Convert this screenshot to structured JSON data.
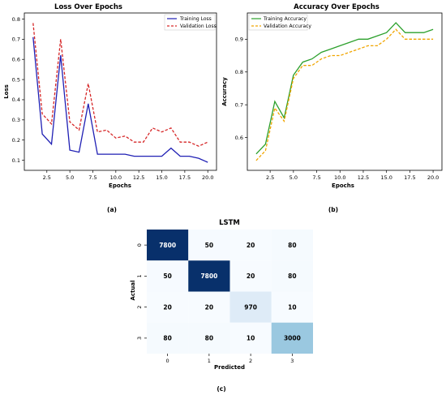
{
  "chart_data": [
    {
      "type": "line",
      "title": "Loss Over Epochs",
      "xlabel": "Epochs",
      "ylabel": "Loss",
      "xlim": [
        0.05,
        20.95
      ],
      "ylim": [
        0.05,
        0.83
      ],
      "xticks": [
        "2.5",
        "5.0",
        "7.5",
        "10.0",
        "12.5",
        "15.0",
        "17.5",
        "20.0"
      ],
      "xtick_values": [
        2.5,
        5.0,
        7.5,
        10.0,
        12.5,
        15.0,
        17.5,
        20.0
      ],
      "yticks": [
        "0.1",
        "0.2",
        "0.3",
        "0.4",
        "0.5",
        "0.6",
        "0.7",
        "0.8"
      ],
      "ytick_values": [
        0.1,
        0.2,
        0.3,
        0.4,
        0.5,
        0.6,
        0.7,
        0.8
      ],
      "x": [
        1,
        2,
        3,
        4,
        5,
        6,
        7,
        8,
        9,
        10,
        11,
        12,
        13,
        14,
        15,
        16,
        17,
        18,
        19,
        20
      ],
      "series": [
        {
          "name": "Training Loss",
          "color": "#1f1fb4",
          "dash": "solid",
          "values": [
            0.71,
            0.23,
            0.18,
            0.62,
            0.15,
            0.14,
            0.38,
            0.13,
            0.13,
            0.13,
            0.13,
            0.12,
            0.12,
            0.12,
            0.12,
            0.16,
            0.12,
            0.12,
            0.11,
            0.09
          ]
        },
        {
          "name": "Validation Loss",
          "color": "#d62728",
          "dash": "dashed",
          "values": [
            0.78,
            0.33,
            0.28,
            0.7,
            0.29,
            0.25,
            0.48,
            0.24,
            0.25,
            0.21,
            0.22,
            0.19,
            0.19,
            0.26,
            0.24,
            0.26,
            0.19,
            0.19,
            0.17,
            0.19
          ]
        }
      ],
      "legend": "top-right",
      "caption": "(a)"
    },
    {
      "type": "line",
      "title": "Accuracy Over Epochs",
      "xlabel": "Epochs",
      "ylabel": "Accuracy",
      "xlim": [
        0.05,
        20.95
      ],
      "ylim": [
        0.5,
        0.98
      ],
      "xticks": [
        "2.5",
        "5.0",
        "7.5",
        "10.0",
        "12.5",
        "15.0",
        "17.5",
        "20.0"
      ],
      "xtick_values": [
        2.5,
        5.0,
        7.5,
        10.0,
        12.5,
        15.0,
        17.5,
        20.0
      ],
      "yticks": [
        "0.6",
        "0.7",
        "0.8",
        "0.9"
      ],
      "ytick_values": [
        0.6,
        0.7,
        0.8,
        0.9
      ],
      "x": [
        1,
        2,
        3,
        4,
        5,
        6,
        7,
        8,
        9,
        10,
        11,
        12,
        13,
        14,
        15,
        16,
        17,
        18,
        19,
        20
      ],
      "series": [
        {
          "name": "Training Accuracy",
          "color": "#2ca02c",
          "dash": "solid",
          "values": [
            0.55,
            0.58,
            0.71,
            0.66,
            0.79,
            0.83,
            0.84,
            0.86,
            0.87,
            0.88,
            0.89,
            0.9,
            0.9,
            0.91,
            0.92,
            0.95,
            0.92,
            0.92,
            0.92,
            0.93
          ]
        },
        {
          "name": "Validation Accuracy",
          "color": "#f0a500",
          "dash": "dashed",
          "values": [
            0.53,
            0.56,
            0.69,
            0.65,
            0.78,
            0.82,
            0.82,
            0.84,
            0.85,
            0.85,
            0.86,
            0.87,
            0.88,
            0.88,
            0.9,
            0.93,
            0.9,
            0.9,
            0.9,
            0.9
          ]
        }
      ],
      "legend": "top-left",
      "caption": "(b)"
    },
    {
      "type": "heatmap",
      "title": "LSTM",
      "xlabel": "Predicted",
      "ylabel": "Actual",
      "x_categories": [
        "0",
        "1",
        "2",
        "3"
      ],
      "y_categories": [
        "0",
        "1",
        "2",
        "3"
      ],
      "values": [
        [
          7800,
          50,
          20,
          80
        ],
        [
          50,
          7800,
          20,
          80
        ],
        [
          20,
          20,
          970,
          10
        ],
        [
          80,
          80,
          10,
          3000
        ]
      ],
      "colormap": "Blues",
      "caption": "(c)"
    }
  ]
}
